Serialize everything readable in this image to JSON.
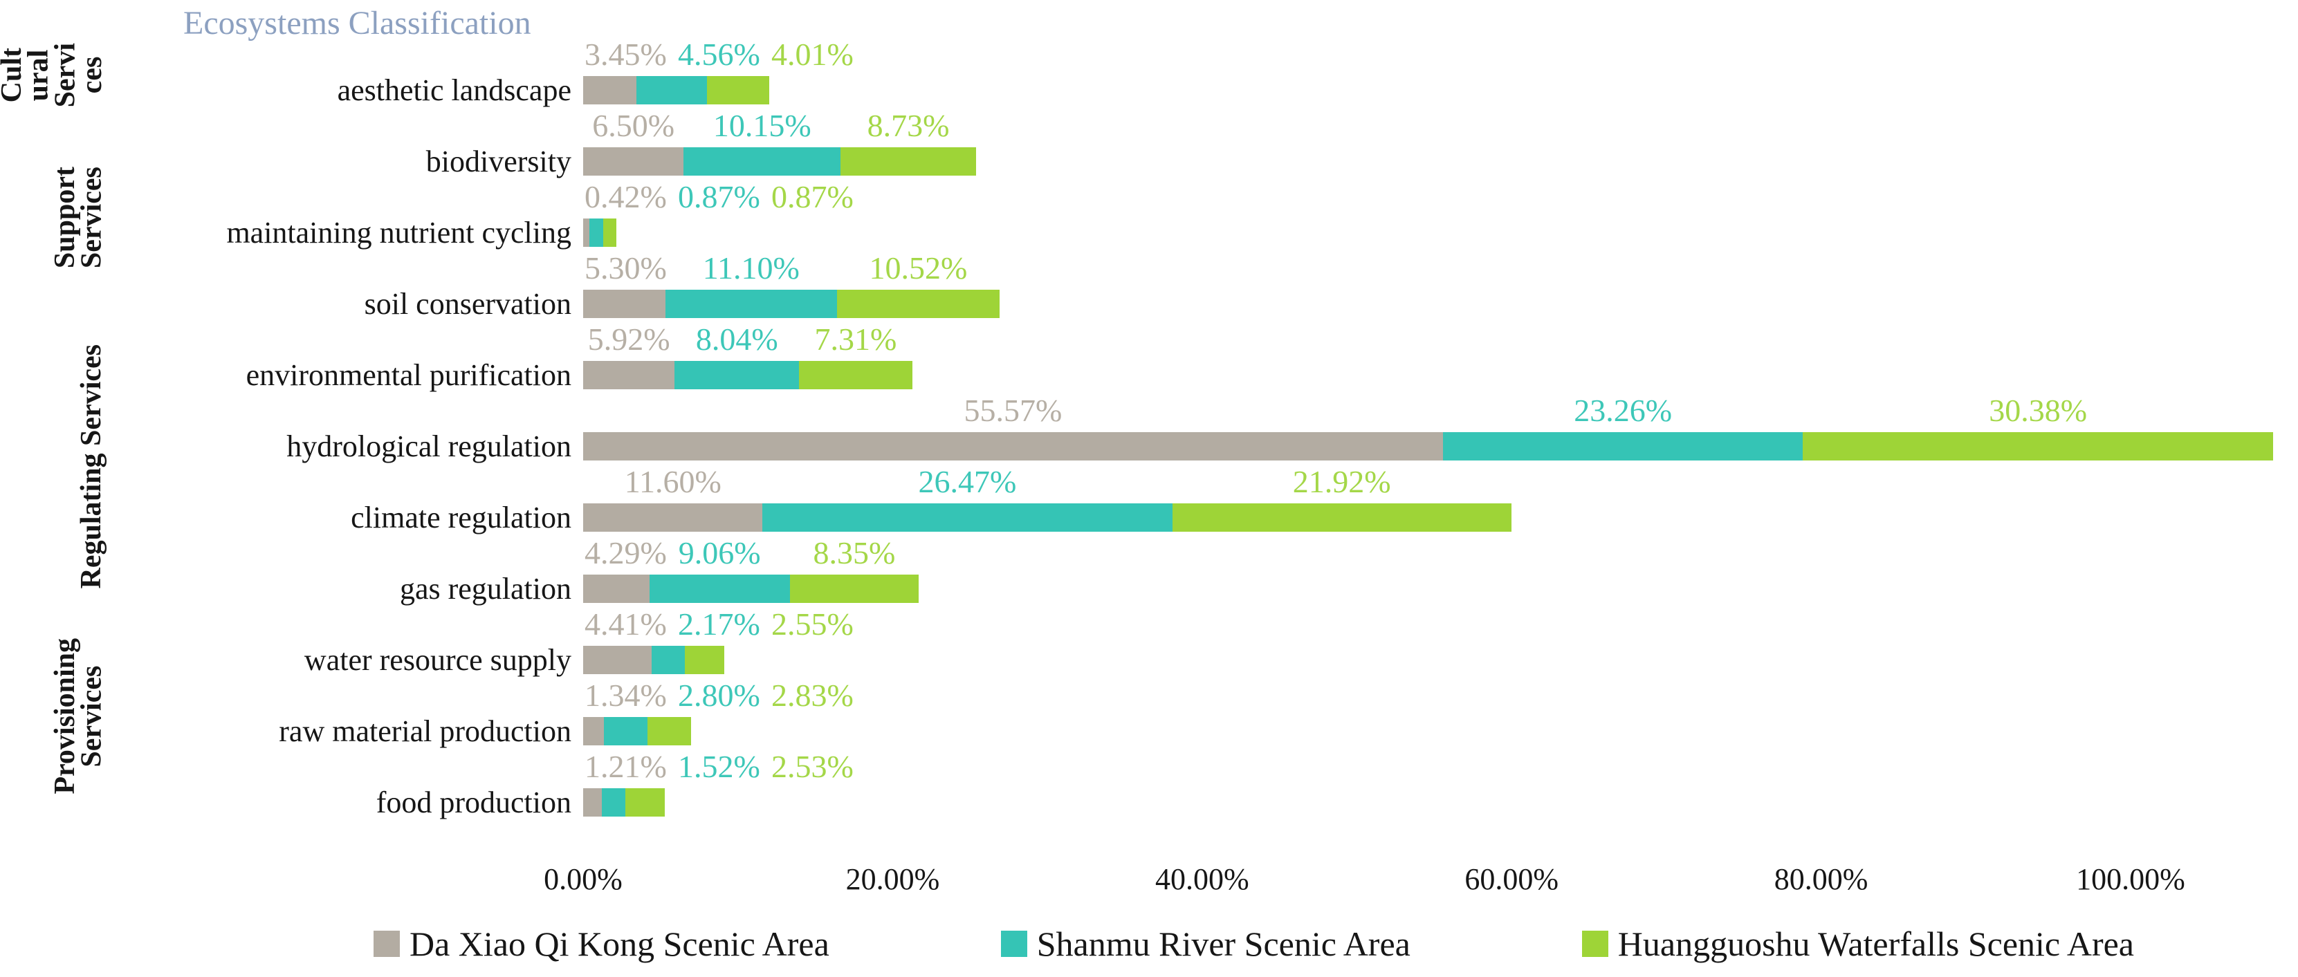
{
  "chart_data": {
    "type": "bar",
    "orientation": "horizontal-stacked",
    "title": "Ecosystems Classification",
    "categories": [
      "aesthetic landscape",
      "biodiversity",
      "maintaining nutrient cycling",
      "soil conservation",
      "environmental purification",
      "hydrological regulation",
      "climate regulation",
      "gas regulation",
      "water resource supply",
      "raw material production",
      "food production"
    ],
    "groups": [
      {
        "label": "Cultural Services",
        "lines": [
          "Cult",
          "ural",
          "Servi",
          "ces"
        ],
        "start": 0,
        "end": 0
      },
      {
        "label": "Support Services",
        "lines": [
          "Support",
          "Services"
        ],
        "start": 1,
        "end": 3
      },
      {
        "label": "Regulating Services",
        "lines": [
          "Regulating Services"
        ],
        "start": 4,
        "end": 7
      },
      {
        "label": "Provisioning Services",
        "lines": [
          "Provisioning",
          "Services"
        ],
        "start": 8,
        "end": 10
      }
    ],
    "series": [
      {
        "name": "Da Xiao Qi Kong Scenic Area",
        "color": "#b3aca2",
        "label_color": "#b6afa5",
        "values": [
          3.45,
          6.5,
          0.42,
          5.3,
          5.92,
          55.57,
          11.6,
          4.29,
          4.41,
          1.34,
          1.21
        ],
        "labels": [
          "3.45%",
          "6.50%",
          "0.42%",
          "5.30%",
          "5.92%",
          "55.57%",
          "11.60%",
          "4.29%",
          "4.41%",
          "1.34%",
          "1.21%"
        ]
      },
      {
        "name": "Shanmu River Scenic Area",
        "color": "#35c4b5",
        "label_color": "#3dc7b8",
        "values": [
          4.56,
          10.15,
          0.87,
          11.1,
          8.04,
          23.26,
          26.47,
          9.06,
          2.17,
          2.8,
          1.52
        ],
        "labels": [
          "4.56%",
          "10.15%",
          "0.87%",
          "11.10%",
          "8.04%",
          "23.26%",
          "26.47%",
          "9.06%",
          "2.17%",
          "2.80%",
          "1.52%"
        ]
      },
      {
        "name": "Huangguoshu Waterfalls Scenic Area",
        "color": "#9ed437",
        "label_color": "#a4d748",
        "values": [
          4.01,
          8.73,
          0.87,
          10.52,
          7.31,
          30.38,
          21.92,
          8.35,
          2.55,
          2.83,
          2.53
        ],
        "labels": [
          "4.01%",
          "8.73%",
          "0.87%",
          "10.52%",
          "7.31%",
          "30.38%",
          "21.92%",
          "8.35%",
          "2.55%",
          "2.83%",
          "2.53%"
        ]
      }
    ],
    "x_axis": {
      "ticks": [
        "0.00%",
        "20.00%",
        "40.00%",
        "60.00%",
        "80.00%",
        "100.00%"
      ],
      "tick_values": [
        0,
        20,
        40,
        60,
        80,
        100
      ],
      "xlim": [
        0,
        110.8
      ],
      "gridlines": false
    },
    "legend_position": "bottom",
    "value_labels_position": "above-segments"
  }
}
